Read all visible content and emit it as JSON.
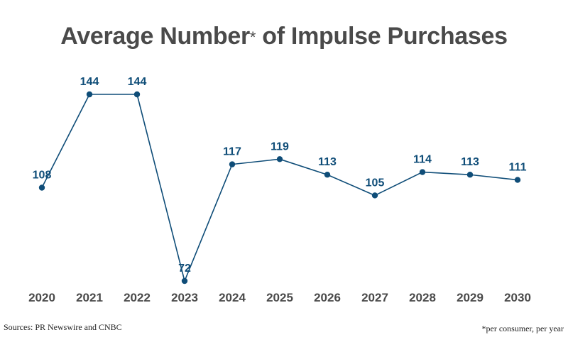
{
  "title": {
    "main": "Average Number",
    "mark": "*",
    "rest": " of Impulse Purchases"
  },
  "footer": {
    "source": "Sources: PR Newswire and CNBC",
    "footnote": "*per consumer, per year"
  },
  "colors": {
    "line": "#0f4d78",
    "title": "#4a4a4a",
    "axis_text": "#4a4a4a"
  },
  "chart_data": {
    "type": "line",
    "title": "Average Number* of Impulse Purchases",
    "x": [
      "2020",
      "2021",
      "2022",
      "2023",
      "2024",
      "2025",
      "2026",
      "2027",
      "2028",
      "2029",
      "2030"
    ],
    "series": [
      {
        "values": [
          108,
          144,
          144,
          72,
          117,
          119,
          113,
          105,
          114,
          113,
          111
        ]
      }
    ],
    "data_labels": [
      "108",
      "144",
      "144",
      "72",
      "117",
      "119",
      "113",
      "105",
      "114",
      "113",
      "111"
    ],
    "xlabel": "",
    "ylabel": "",
    "ylim": [
      72,
      144
    ],
    "grid": false,
    "legend": "none",
    "y_axis_visible": false
  }
}
